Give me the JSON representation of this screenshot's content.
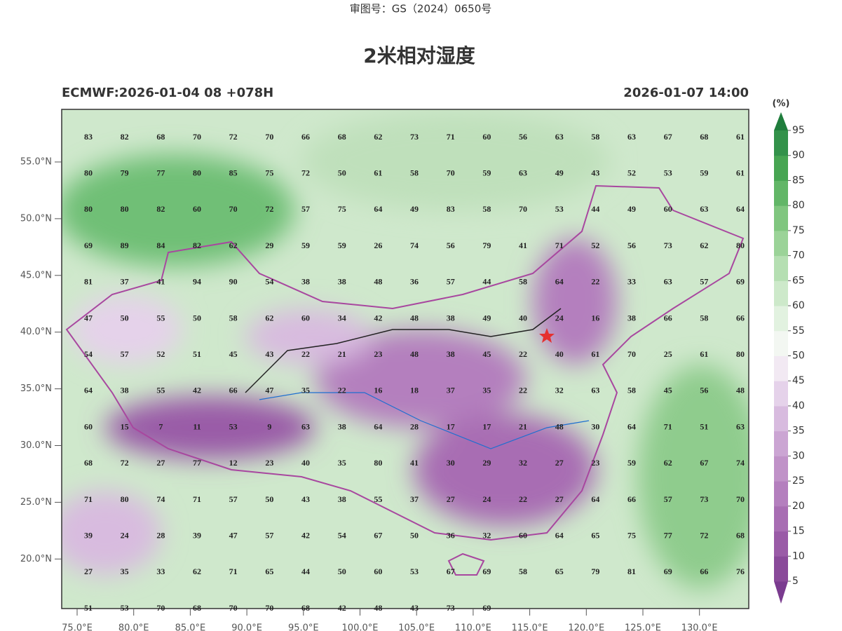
{
  "header": {
    "review_no": "审图号：GS（2024）0650号"
  },
  "title": "2米相对湿度",
  "subtitle_left": "ECMWF:2026-01-04 08 +078H",
  "subtitle_right": "2026-01-07 14:00",
  "axes": {
    "lat_labels": [
      "55.0°N",
      "50.0°N",
      "45.0°N",
      "40.0°N",
      "35.0°N",
      "30.0°N",
      "25.0°N",
      "20.0°N"
    ],
    "lon_labels": [
      "75.0°E",
      "80.0°E",
      "85.0°E",
      "90.0°E",
      "95.0°E",
      "100.0°E",
      "105.0°E",
      "110.0°E",
      "115.0°E",
      "120.0°E",
      "125.0°E",
      "130.0°E"
    ]
  },
  "colorbar": {
    "unit": "(%)",
    "levels": [
      5,
      10,
      15,
      20,
      25,
      30,
      35,
      40,
      45,
      50,
      55,
      60,
      65,
      70,
      75,
      80,
      85,
      90,
      95
    ],
    "colors": [
      "#7a3b8f",
      "#8a4a9a",
      "#9a5ba7",
      "#a86db3",
      "#b47fbe",
      "#c092c8",
      "#cba5d3",
      "#d8bbdf",
      "#e5d2ea",
      "#f2e9f3",
      "#f3f7f2",
      "#e2f2e0",
      "#cde9ca",
      "#b5dfb2",
      "#9bd398",
      "#80c67f",
      "#62b667",
      "#47a552",
      "#33924a",
      "#1f7d3c"
    ]
  },
  "grid": {
    "rows": [
      [
        83,
        82,
        68,
        70,
        72,
        70,
        66,
        68,
        62,
        73,
        71,
        60,
        56,
        63,
        58,
        63,
        67,
        68,
        61
      ],
      [
        80,
        79,
        77,
        80,
        85,
        75,
        72,
        50,
        61,
        58,
        70,
        59,
        63,
        49,
        43,
        52,
        53,
        59,
        61
      ],
      [
        80,
        80,
        82,
        60,
        70,
        72,
        57,
        75,
        64,
        49,
        83,
        58,
        70,
        53,
        44,
        49,
        60,
        63,
        64
      ],
      [
        69,
        89,
        84,
        82,
        62,
        29,
        59,
        59,
        26,
        74,
        56,
        79,
        41,
        71,
        52,
        56,
        73,
        62,
        80
      ],
      [
        81,
        37,
        41,
        94,
        90,
        54,
        38,
        38,
        48,
        36,
        57,
        44,
        58,
        64,
        22,
        33,
        63,
        57,
        69
      ],
      [
        47,
        50,
        55,
        50,
        58,
        62,
        60,
        34,
        42,
        48,
        38,
        49,
        40,
        24,
        16,
        38,
        66,
        58,
        66
      ],
      [
        54,
        57,
        52,
        51,
        45,
        43,
        22,
        21,
        23,
        48,
        38,
        45,
        22,
        40,
        61,
        70,
        25,
        61,
        80
      ],
      [
        64,
        38,
        55,
        42,
        66,
        47,
        35,
        22,
        16,
        18,
        37,
        35,
        22,
        32,
        63,
        58,
        45,
        56,
        48
      ],
      [
        60,
        15,
        7,
        11,
        53,
        9,
        63,
        38,
        64,
        28,
        17,
        17,
        21,
        48,
        30,
        64,
        71,
        51,
        63
      ],
      [
        68,
        72,
        27,
        77,
        12,
        23,
        40,
        35,
        80,
        41,
        30,
        29,
        32,
        27,
        23,
        59,
        62,
        67,
        74
      ],
      [
        71,
        80,
        74,
        71,
        57,
        50,
        43,
        38,
        55,
        37,
        27,
        24,
        22,
        27,
        64,
        66,
        57,
        73,
        70
      ],
      [
        39,
        24,
        28,
        39,
        47,
        57,
        42,
        54,
        67,
        50,
        36,
        32,
        60,
        64,
        65,
        75,
        77,
        72,
        68
      ],
      [
        27,
        35,
        33,
        62,
        71,
        65,
        44,
        50,
        60,
        53,
        67,
        69,
        58,
        65,
        79,
        81,
        69,
        66,
        76
      ],
      [
        51,
        53,
        70,
        68,
        70,
        70,
        68,
        42,
        48,
        43,
        73,
        69
      ]
    ]
  }
}
